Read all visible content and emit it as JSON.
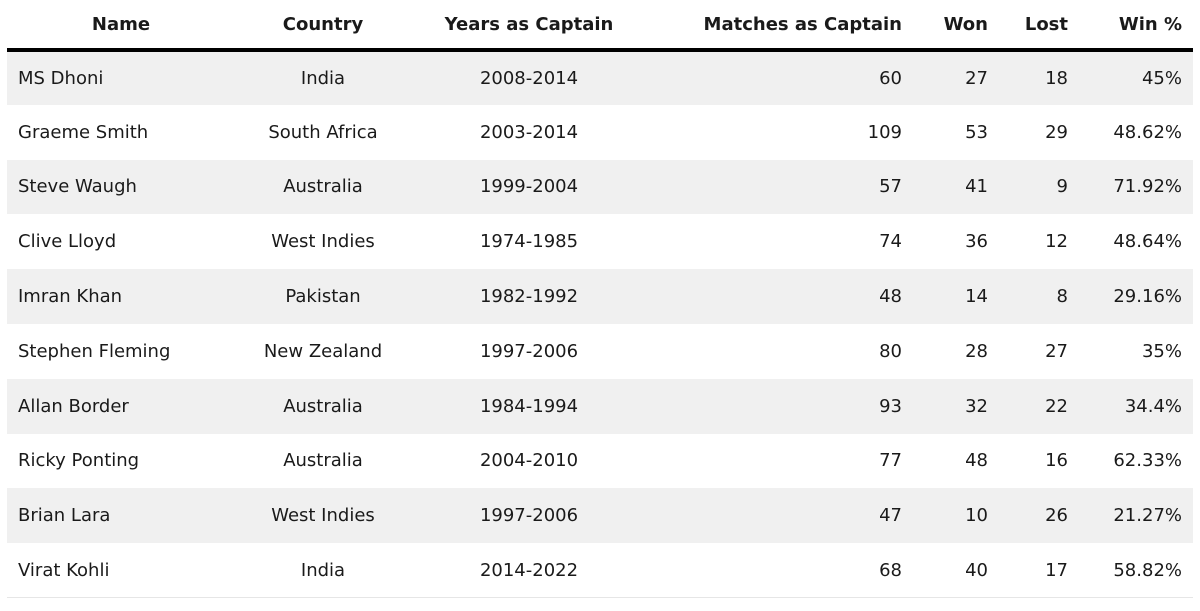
{
  "table": {
    "headers": {
      "name": "Name",
      "country": "Country",
      "years": "Years as Captain",
      "matches": "Matches as Captain",
      "won": "Won",
      "lost": "Lost",
      "win_pct": "Win %"
    },
    "rows": [
      {
        "name": "MS Dhoni",
        "country": "India",
        "years": "2008-2014",
        "matches": "60",
        "won": "27",
        "lost": "18",
        "win_pct": "45%"
      },
      {
        "name": "Graeme Smith",
        "country": "South Africa",
        "years": "2003-2014",
        "matches": "109",
        "won": "53",
        "lost": "29",
        "win_pct": "48.62%"
      },
      {
        "name": "Steve Waugh",
        "country": "Australia",
        "years": "1999-2004",
        "matches": "57",
        "won": "41",
        "lost": "9",
        "win_pct": "71.92%"
      },
      {
        "name": "Clive Lloyd",
        "country": "West Indies",
        "years": "1974-1985",
        "matches": "74",
        "won": "36",
        "lost": "12",
        "win_pct": "48.64%"
      },
      {
        "name": "Imran Khan",
        "country": "Pakistan",
        "years": "1982-1992",
        "matches": "48",
        "won": "14",
        "lost": "8",
        "win_pct": "29.16%"
      },
      {
        "name": "Stephen Fleming",
        "country": "New Zealand",
        "years": "1997-2006",
        "matches": "80",
        "won": "28",
        "lost": "27",
        "win_pct": "35%"
      },
      {
        "name": "Allan Border",
        "country": "Australia",
        "years": "1984-1994",
        "matches": "93",
        "won": "32",
        "lost": "22",
        "win_pct": "34.4%"
      },
      {
        "name": "Ricky Ponting",
        "country": "Australia",
        "years": "2004-2010",
        "matches": "77",
        "won": "48",
        "lost": "16",
        "win_pct": "62.33%"
      },
      {
        "name": "Brian Lara",
        "country": "West Indies",
        "years": "1997-2006",
        "matches": "47",
        "won": "10",
        "lost": "26",
        "win_pct": "21.27%"
      },
      {
        "name": "Virat Kohli",
        "country": "India",
        "years": "2014-2022",
        "matches": "68",
        "won": "40",
        "lost": "17",
        "win_pct": "58.82%"
      }
    ]
  }
}
